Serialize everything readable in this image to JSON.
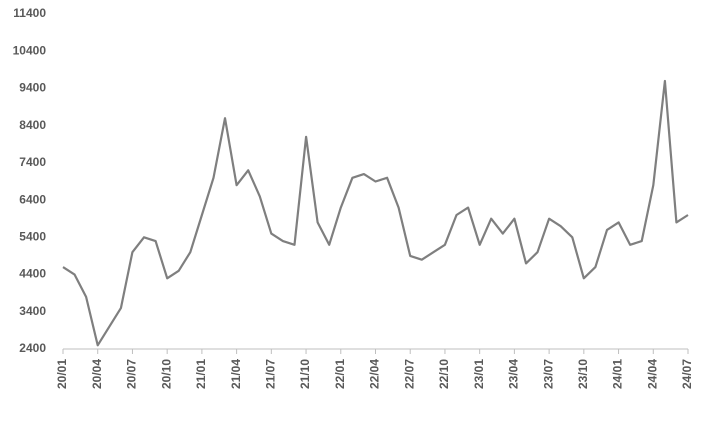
{
  "chart_data": {
    "type": "line",
    "categories": [
      "20/01",
      null,
      null,
      "20/04",
      null,
      null,
      "20/07",
      null,
      null,
      "20/10",
      null,
      null,
      "21/01",
      null,
      null,
      "21/04",
      null,
      null,
      "21/07",
      null,
      null,
      "21/10",
      null,
      null,
      "22/01",
      null,
      null,
      "22/04",
      null,
      null,
      "22/07",
      null,
      null,
      "22/10",
      null,
      null,
      "23/01",
      null,
      null,
      "23/04",
      null,
      null,
      "23/07",
      null,
      null,
      "23/10",
      null,
      null,
      "24/01",
      null,
      null,
      "24/04",
      null,
      null,
      "24/07"
    ],
    "values": [
      4600,
      4400,
      3800,
      2500,
      3000,
      3500,
      5000,
      5400,
      5300,
      4300,
      4500,
      5000,
      6000,
      7000,
      8600,
      6800,
      7200,
      6500,
      5500,
      5300,
      5200,
      8100,
      5800,
      5200,
      6200,
      7000,
      7100,
      6900,
      7000,
      6200,
      4900,
      4800,
      5000,
      5200,
      6000,
      6200,
      5200,
      5900,
      5500,
      5900,
      4700,
      5000,
      5900,
      5700,
      5400,
      4300,
      4600,
      5600,
      5800,
      5200,
      5300,
      6800,
      9600,
      5800,
      6000
    ],
    "color": "#7f7f7f",
    "ylim": [
      2400,
      11400
    ],
    "yticks": [
      2400,
      3400,
      4400,
      5400,
      6400,
      7400,
      8400,
      9400,
      10400,
      11400
    ],
    "grid": false
  }
}
